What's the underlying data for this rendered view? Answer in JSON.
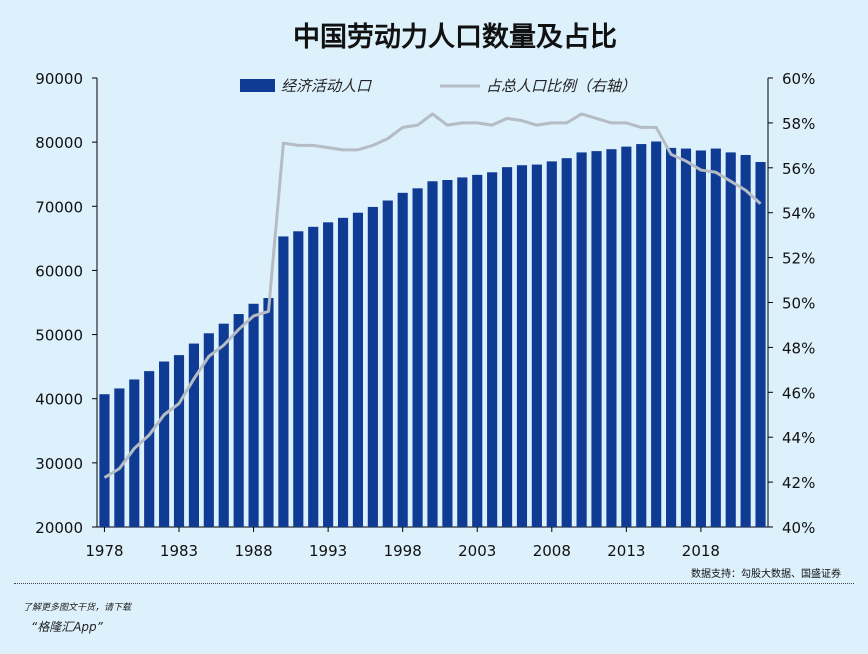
{
  "footer": {
    "promo": "了解更多图文干货，请下载",
    "app": "“格隆汇App”"
  },
  "chart_data": {
    "type": "bar+line",
    "title": "中国劳动力人口数量及占比",
    "source": "数据支持：勾股大数据、国盛证券",
    "legend_placement": "top",
    "x_tick_labels": [
      "1978",
      "1983",
      "1988",
      "1993",
      "1998",
      "2003",
      "2008",
      "2013",
      "2018"
    ],
    "y_left": {
      "min": 20000,
      "max": 90000,
      "step": 10000,
      "ticks": [
        "20000",
        "30000",
        "40000",
        "50000",
        "60000",
        "70000",
        "80000",
        "90000"
      ]
    },
    "y_right": {
      "min": 40,
      "max": 60,
      "step": 2,
      "ticks": [
        "40%",
        "42%",
        "44%",
        "46%",
        "48%",
        "50%",
        "52%",
        "54%",
        "56%",
        "58%",
        "60%"
      ]
    },
    "x": [
      1978,
      1979,
      1980,
      1981,
      1982,
      1983,
      1984,
      1985,
      1986,
      1987,
      1988,
      1989,
      1990,
      1991,
      1992,
      1993,
      1994,
      1995,
      1996,
      1997,
      1998,
      1999,
      2000,
      2001,
      2002,
      2003,
      2004,
      2005,
      2006,
      2007,
      2008,
      2009,
      2010,
      2011,
      2012,
      2013,
      2014,
      2015,
      2016,
      2017,
      2018,
      2019,
      2020,
      2021,
      2022
    ],
    "series": [
      {
        "name": "经济活动人口",
        "axis": "left",
        "kind": "bar",
        "color": "#0f3b94",
        "values": [
          40700,
          41600,
          43000,
          44300,
          45800,
          46800,
          48600,
          50200,
          51700,
          53200,
          54800,
          55700,
          65300,
          66100,
          66800,
          67500,
          68200,
          69000,
          69900,
          70900,
          72100,
          72800,
          73900,
          74100,
          74500,
          74900,
          75300,
          76100,
          76400,
          76500,
          77000,
          77500,
          78400,
          78600,
          78900,
          79300,
          79700,
          80100,
          79100,
          79000,
          78700,
          79000,
          78400,
          78000,
          76900
        ]
      },
      {
        "name": "占总人口比例（右轴）",
        "axis": "right",
        "kind": "line",
        "color": "#b5bcc4",
        "values": [
          42.2,
          42.6,
          43.5,
          44.1,
          45.0,
          45.5,
          46.6,
          47.6,
          48.1,
          48.8,
          49.4,
          49.6,
          57.1,
          57.0,
          57.0,
          56.9,
          56.8,
          56.8,
          57.0,
          57.3,
          57.8,
          57.9,
          58.4,
          57.9,
          58.0,
          58.0,
          57.9,
          58.2,
          58.1,
          57.9,
          58.0,
          58.0,
          58.4,
          58.2,
          58.0,
          58.0,
          57.8,
          57.8,
          56.6,
          56.3,
          55.9,
          55.8,
          55.4,
          55.0,
          54.4
        ]
      }
    ]
  }
}
